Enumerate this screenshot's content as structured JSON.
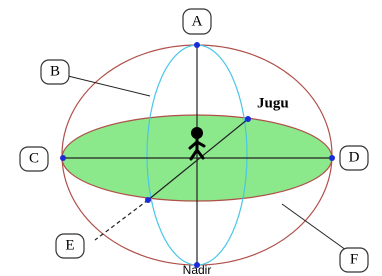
{
  "labels": {
    "a": "A",
    "b": "B",
    "c": "C",
    "d": "D",
    "e": "E",
    "f": "F"
  },
  "jugu": "Jugu",
  "nadir": "Nadir"
}
